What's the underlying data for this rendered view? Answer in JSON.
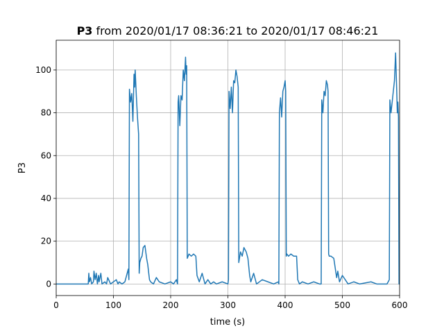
{
  "chart_data": {
    "type": "line",
    "title": {
      "name": "P3",
      "text": "from 2020/01/17 08:36:21 to 2020/01/17 08:46:21"
    },
    "xlabel": "time (s)",
    "ylabel": "P3",
    "x": [
      0,
      56,
      57,
      58,
      60,
      62,
      65,
      66,
      68,
      70,
      72,
      74,
      75,
      78,
      80,
      85,
      88,
      90,
      95,
      100,
      105,
      108,
      110,
      115,
      120,
      126,
      127,
      128,
      130,
      132,
      134,
      136,
      137,
      138,
      140,
      142,
      144,
      145,
      146,
      148,
      150,
      152,
      155,
      158,
      160,
      163,
      165,
      170,
      175,
      180,
      190,
      200,
      205,
      210,
      212,
      213,
      214,
      216,
      218,
      220,
      222,
      224,
      226,
      227,
      228,
      229,
      232,
      236,
      240,
      244,
      246,
      250,
      255,
      260,
      265,
      270,
      275,
      280,
      290,
      300,
      301,
      302,
      304,
      306,
      308,
      310,
      312,
      314,
      316,
      318,
      319,
      322,
      325,
      328,
      332,
      335,
      338,
      340,
      345,
      350,
      360,
      370,
      380,
      388,
      389,
      390,
      392,
      394,
      396,
      398,
      400,
      401,
      402,
      403,
      406,
      410,
      415,
      420,
      422,
      425,
      430,
      440,
      450,
      460,
      463,
      464,
      466,
      468,
      470,
      472,
      474,
      475,
      476,
      477,
      480,
      485,
      490,
      492,
      495,
      500,
      510,
      520,
      530,
      550,
      560,
      570,
      578,
      580,
      582,
      583,
      585,
      587,
      589,
      591,
      593,
      595,
      596,
      597,
      598,
      599,
      600
    ],
    "values": [
      0,
      0,
      5,
      1,
      3,
      0,
      1,
      6,
      2,
      5,
      0,
      4,
      1,
      5,
      0,
      1,
      0,
      3,
      0,
      1,
      2,
      0,
      1,
      0,
      1,
      7,
      2,
      91,
      85,
      89,
      76,
      98,
      92,
      100,
      88,
      78,
      70,
      5,
      10,
      12,
      13,
      17,
      18,
      12,
      9,
      2,
      1,
      0,
      3,
      1,
      0,
      1,
      0,
      2,
      0,
      85,
      88,
      74,
      88,
      86,
      100,
      95,
      106,
      98,
      102,
      12,
      14,
      13,
      14,
      13,
      4,
      1,
      5,
      0,
      2,
      0,
      1,
      0,
      1,
      0,
      2,
      90,
      82,
      92,
      80,
      95,
      94,
      100,
      97,
      92,
      10,
      15,
      13,
      17,
      15,
      12,
      4,
      1,
      5,
      0,
      2,
      1,
      0,
      1,
      0,
      80,
      87,
      78,
      90,
      92,
      95,
      90,
      13,
      14,
      13,
      14,
      13,
      13,
      2,
      0,
      1,
      0,
      1,
      0,
      0,
      86,
      80,
      90,
      88,
      95,
      93,
      90,
      14,
      13,
      13,
      12,
      3,
      6,
      1,
      4,
      0,
      1,
      0,
      1,
      0,
      0,
      0,
      1,
      2,
      86,
      80,
      85,
      90,
      95,
      108,
      90,
      80,
      85,
      78,
      0,
      0
    ],
    "color": "#1f77b4",
    "xlim": [
      0,
      600
    ],
    "xticks": [
      0,
      100,
      200,
      300,
      400,
      500,
      600
    ],
    "ylim": [
      -5.4,
      113.9
    ],
    "yticks": [
      0,
      20,
      40,
      60,
      80,
      100
    ],
    "grid": true
  }
}
